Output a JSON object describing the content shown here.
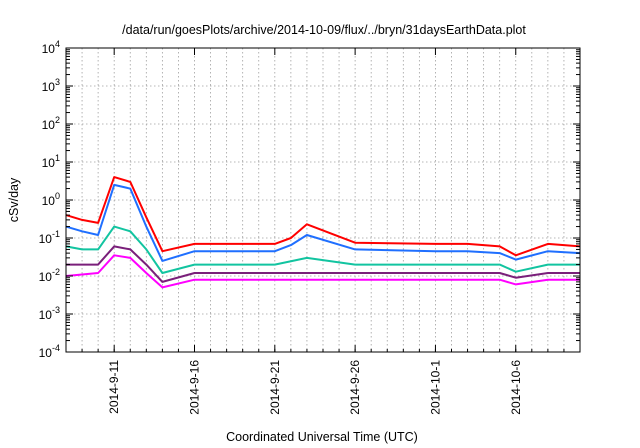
{
  "chart_data": {
    "type": "line",
    "title": "/data/run/goesPlots/archive/2014-10-09/flux/../bryn/31daysEarthData.plot",
    "xlabel": "Coordinated Universal Time (UTC)",
    "ylabel": "cSv/day",
    "yscale": "log",
    "ylim": [
      0.0001,
      10000
    ],
    "xlim": [
      "2014-09-08",
      "2014-10-10"
    ],
    "grid": true,
    "legend": "none",
    "y_ticks": [
      {
        "base": "10",
        "exp": "-4",
        "value": 0.0001
      },
      {
        "base": "10",
        "exp": "-3",
        "value": 0.001
      },
      {
        "base": "10",
        "exp": "-2",
        "value": 0.01
      },
      {
        "base": "10",
        "exp": "-1",
        "value": 0.1
      },
      {
        "base": "10",
        "exp": "0",
        "value": 1
      },
      {
        "base": "10",
        "exp": "1",
        "value": 10
      },
      {
        "base": "10",
        "exp": "2",
        "value": 100
      },
      {
        "base": "10",
        "exp": "3",
        "value": 1000
      },
      {
        "base": "10",
        "exp": "4",
        "value": 10000
      }
    ],
    "x_ticks": [
      "2014-9-11",
      "2014-9-16",
      "2014-9-21",
      "2014-9-26",
      "2014-10-1",
      "2014-10-6"
    ],
    "colors": [
      "#ff0000",
      "#1f6fff",
      "#12c4a0",
      "#7a1f7a",
      "#ff00ff"
    ],
    "series": [
      {
        "color": "#ff0000",
        "x": [
          "2014-09-08",
          "2014-09-09",
          "2014-09-10",
          "2014-09-11",
          "2014-09-12",
          "2014-09-13",
          "2014-09-14",
          "2014-09-16",
          "2014-09-21",
          "2014-09-22",
          "2014-09-23",
          "2014-09-26",
          "2014-10-01",
          "2014-10-03",
          "2014-10-05",
          "2014-10-06",
          "2014-10-08",
          "2014-10-10"
        ],
        "values": [
          0.4,
          0.3,
          0.25,
          4.0,
          3.0,
          0.35,
          0.045,
          0.07,
          0.07,
          0.1,
          0.23,
          0.075,
          0.07,
          0.07,
          0.06,
          0.035,
          0.07,
          0.06
        ]
      },
      {
        "color": "#1f6fff",
        "x": [
          "2014-09-08",
          "2014-09-09",
          "2014-09-10",
          "2014-09-11",
          "2014-09-12",
          "2014-09-13",
          "2014-09-14",
          "2014-09-16",
          "2014-09-21",
          "2014-09-22",
          "2014-09-23",
          "2014-09-26",
          "2014-10-01",
          "2014-10-03",
          "2014-10-05",
          "2014-10-06",
          "2014-10-08",
          "2014-10-10"
        ],
        "values": [
          0.2,
          0.15,
          0.12,
          2.5,
          2.0,
          0.2,
          0.025,
          0.045,
          0.045,
          0.065,
          0.12,
          0.05,
          0.045,
          0.045,
          0.04,
          0.027,
          0.045,
          0.04
        ]
      },
      {
        "color": "#12c4a0",
        "x": [
          "2014-09-08",
          "2014-09-09",
          "2014-09-10",
          "2014-09-11",
          "2014-09-12",
          "2014-09-13",
          "2014-09-14",
          "2014-09-16",
          "2014-09-21",
          "2014-09-23",
          "2014-09-26",
          "2014-10-01",
          "2014-10-05",
          "2014-10-06",
          "2014-10-08",
          "2014-10-10"
        ],
        "values": [
          0.06,
          0.05,
          0.05,
          0.2,
          0.15,
          0.05,
          0.012,
          0.02,
          0.02,
          0.03,
          0.02,
          0.02,
          0.02,
          0.013,
          0.02,
          0.02
        ]
      },
      {
        "color": "#7a1f7a",
        "x": [
          "2014-09-08",
          "2014-09-10",
          "2014-09-11",
          "2014-09-12",
          "2014-09-13",
          "2014-09-14",
          "2014-09-16",
          "2014-09-21",
          "2014-09-26",
          "2014-10-01",
          "2014-10-05",
          "2014-10-06",
          "2014-10-08",
          "2014-10-10"
        ],
        "values": [
          0.02,
          0.02,
          0.06,
          0.05,
          0.02,
          0.007,
          0.012,
          0.012,
          0.012,
          0.012,
          0.012,
          0.009,
          0.012,
          0.012
        ]
      },
      {
        "color": "#ff00ff",
        "x": [
          "2014-09-08",
          "2014-09-10",
          "2014-09-11",
          "2014-09-12",
          "2014-09-13",
          "2014-09-14",
          "2014-09-16",
          "2014-09-21",
          "2014-09-26",
          "2014-10-01",
          "2014-10-05",
          "2014-10-06",
          "2014-10-08",
          "2014-10-10"
        ],
        "values": [
          0.01,
          0.012,
          0.035,
          0.03,
          0.012,
          0.005,
          0.008,
          0.008,
          0.008,
          0.008,
          0.008,
          0.006,
          0.008,
          0.008
        ]
      }
    ]
  }
}
